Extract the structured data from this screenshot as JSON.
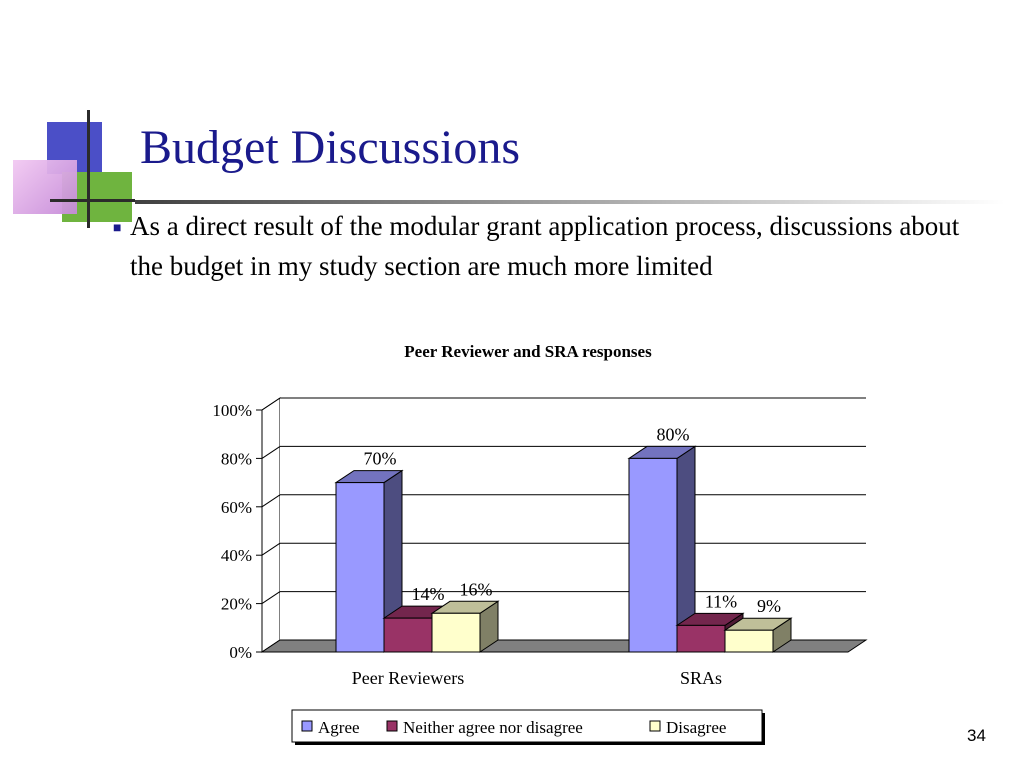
{
  "slide": {
    "title": "Budget Discussions",
    "bullet": "As a direct result of the modular grant application process, discussions about the budget in my study section are much more limited",
    "page_number": "34"
  },
  "chart_data": {
    "type": "bar",
    "title": "Peer Reviewer and SRA responses",
    "categories": [
      "Peer Reviewers",
      "SRAs"
    ],
    "series": [
      {
        "name": "Agree",
        "values": [
          70,
          80
        ],
        "labels": [
          "70%",
          "80%"
        ],
        "color": "#9999ff"
      },
      {
        "name": "Neither agree nor disagree",
        "values": [
          14,
          11
        ],
        "labels": [
          "14%",
          "11%"
        ],
        "color": "#993366"
      },
      {
        "name": "Disagree",
        "values": [
          16,
          9
        ],
        "labels": [
          "16%",
          "9%"
        ],
        "color": "#ffffcc"
      }
    ],
    "ylim": [
      0,
      100
    ],
    "yticks": [
      "0%",
      "20%",
      "40%",
      "60%",
      "80%",
      "100%"
    ],
    "xlabel": "",
    "ylabel": "",
    "grid": true,
    "legend_position": "bottom",
    "floor_color": "#808080"
  }
}
